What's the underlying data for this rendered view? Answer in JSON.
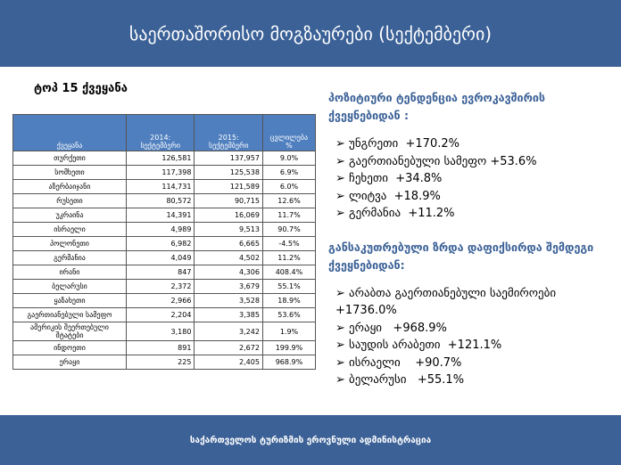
{
  "header": {
    "title": "საერთაშორისო მოგზაურები (სექტემბერი)"
  },
  "table": {
    "caption": "ტოპ 15 ქვეყანა",
    "columns": [
      "ქვეყანა",
      "2014: სექტემბერი",
      "2015: სექტემბერი",
      "ცვლილება %"
    ],
    "rows": [
      [
        "თურქეთი",
        "126,581",
        "137,957",
        "9.0%"
      ],
      [
        "სომხეთი",
        "117,398",
        "125,538",
        "6.9%"
      ],
      [
        "აზერბაიჯანი",
        "114,731",
        "121,589",
        "6.0%"
      ],
      [
        "რუსეთი",
        "80,572",
        "90,715",
        "12.6%"
      ],
      [
        "უკრაინა",
        "14,391",
        "16,069",
        "11.7%"
      ],
      [
        "ისრაელი",
        "4,989",
        "9,513",
        "90.7%"
      ],
      [
        "პოლონეთი",
        "6,982",
        "6,665",
        "-4.5%"
      ],
      [
        "გერმანია",
        "4,049",
        "4,502",
        "11.2%"
      ],
      [
        "ირანი",
        "847",
        "4,306",
        "408.4%"
      ],
      [
        "ბელარუსი",
        "2,372",
        "3,679",
        "55.1%"
      ],
      [
        "ყაზახეთი",
        "2,966",
        "3,528",
        "18.9%"
      ],
      [
        "გაერთიანებული სამეფო",
        "2,204",
        "3,385",
        "53.6%"
      ],
      [
        "ამერიკის შეერთებული შტატები",
        "3,180",
        "3,242",
        "1.9%"
      ],
      [
        "ინდოეთი",
        "891",
        "2,672",
        "199.9%"
      ],
      [
        "ერაყი",
        "225",
        "2,405",
        "968.9%"
      ]
    ]
  },
  "sections": [
    {
      "heading": "პოზიტიური ტენდენცია ევროკავშირის ქვეყნებიდან :",
      "items": [
        "უნგრეთი  +170.2%",
        "გაერთიანებული სამეფო +53.6%",
        "ჩეხეთი  +34.8%",
        "ლიტვა  +18.9%",
        "გერმანია  +11.2%"
      ]
    },
    {
      "heading": "განსაკუთრებული ზრდა დაფიქსირდა შემდეგი ქვეყნებიდან:",
      "items": [
        "არაბთა გაერთიანებული საემიროები +1736.0%",
        "ერაყი   +968.9%",
        "საუდის არაბეთი  +121.1%",
        "ისრაელი    +90.7%",
        "ბელარუსი   +55.1%"
      ]
    }
  ],
  "footer": {
    "text": "საქართველოს ტურიზმის ეროვნული ადმინისტრაცია"
  }
}
